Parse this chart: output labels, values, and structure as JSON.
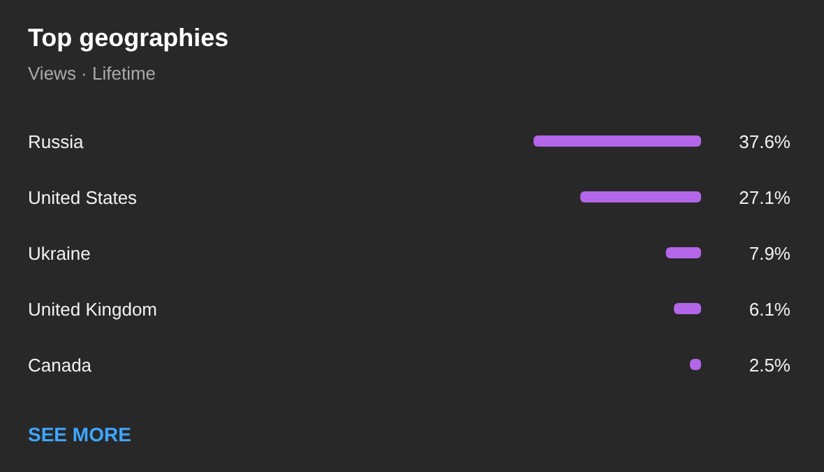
{
  "chart_data": {
    "type": "bar",
    "title": "Top geographies",
    "subtitle": "Views · Lifetime",
    "orientation": "horizontal",
    "categories": [
      "Russia",
      "United States",
      "Ukraine",
      "United Kingdom",
      "Canada"
    ],
    "values": [
      37.6,
      27.1,
      7.9,
      6.1,
      2.5
    ],
    "value_labels": [
      "37.6%",
      "27.1%",
      "7.9%",
      "6.1%",
      "2.5%"
    ],
    "color": "#b366e8",
    "annotations": [
      "SEE MORE"
    ]
  }
}
